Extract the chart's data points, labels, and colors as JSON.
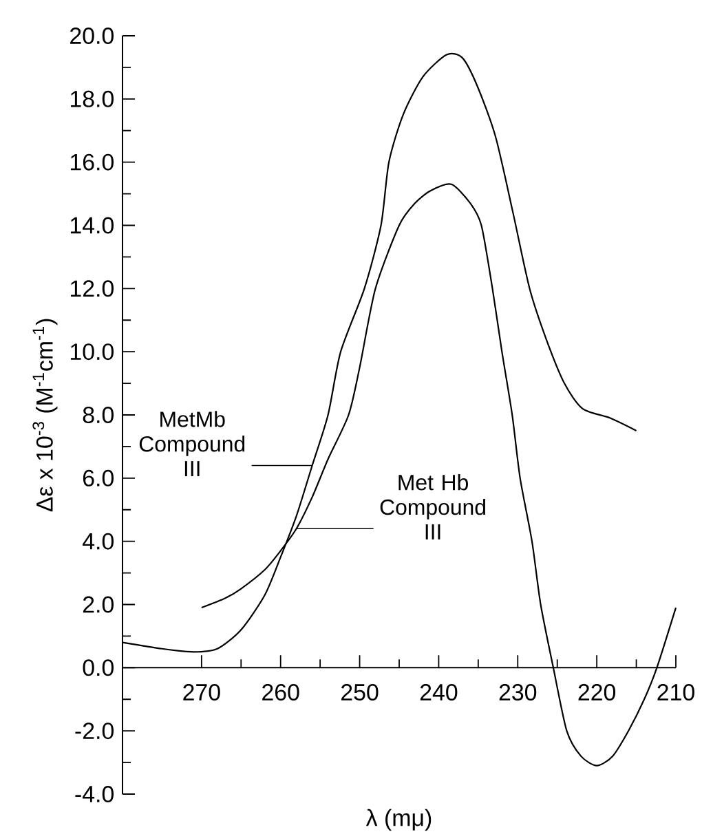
{
  "chart_data": {
    "type": "line",
    "xlabel": "λ   (mμ)",
    "ylabel": "Δε x 10$^{-3}$  (M$^{-1}$cm$^{-1}$)",
    "xlim": [
      280,
      210
    ],
    "xticks": [
      270,
      260,
      250,
      240,
      230,
      220,
      210
    ],
    "ylim": [
      -4,
      20
    ],
    "yticks": [
      {
        "value": -4,
        "label": "-4.0"
      },
      {
        "value": -2,
        "label": "-2.0"
      },
      {
        "value": 0,
        "label": "0.0"
      },
      {
        "value": 2,
        "label": "2.0"
      },
      {
        "value": 4,
        "label": "4.0"
      },
      {
        "value": 6,
        "label": "6.0"
      },
      {
        "value": 8,
        "label": "8.0"
      },
      {
        "value": 10,
        "label": "10.0"
      },
      {
        "value": 12,
        "label": "12.0"
      },
      {
        "value": 14,
        "label": "14.0"
      },
      {
        "value": 16,
        "label": "16.0"
      },
      {
        "value": 18,
        "label": "18.0"
      },
      {
        "value": 20,
        "label": "20.0"
      }
    ],
    "series": [
      {
        "name": "MetMb Compound III",
        "color": "#000000",
        "x": [
          280,
          275,
          271,
          268,
          265,
          262,
          260,
          258,
          256,
          254,
          252.4,
          249.4,
          247.3,
          246.3,
          244.5,
          242,
          239,
          237,
          235.1,
          232.8,
          230.6,
          228.5,
          226.4,
          224.1,
          221.8,
          218.3,
          215
        ],
        "values": [
          0.8,
          0.6,
          0.5,
          0.6,
          1.2,
          2.3,
          3.5,
          4.8,
          6.4,
          8.0,
          10.0,
          12.0,
          14.0,
          16.0,
          17.5,
          18.7,
          19.4,
          19.3,
          18.4,
          16.8,
          14.4,
          12.0,
          10.4,
          9.0,
          8.2,
          7.9,
          7.5
        ]
      },
      {
        "name": "Met Hb Compound III",
        "color": "#000000",
        "x": [
          270,
          267,
          265,
          262,
          260,
          258,
          256,
          254,
          251.4,
          250,
          248,
          245,
          243,
          241,
          238.4,
          236,
          234.6,
          233.2,
          232,
          230.7,
          229.7,
          228.2,
          227.1,
          225.5,
          223.8,
          222,
          220,
          218,
          216,
          214,
          212.4,
          210
        ],
        "values": [
          1.9,
          2.2,
          2.5,
          3.1,
          3.7,
          4.4,
          5.4,
          6.6,
          8.0,
          9.5,
          12.0,
          14.0,
          14.7,
          15.1,
          15.3,
          14.7,
          14.0,
          12.0,
          10.0,
          8.0,
          6.0,
          4.0,
          2.0,
          0,
          -2.0,
          -2.8,
          -3.1,
          -2.8,
          -2.0,
          -1.0,
          0,
          1.9
        ]
      }
    ]
  }
}
